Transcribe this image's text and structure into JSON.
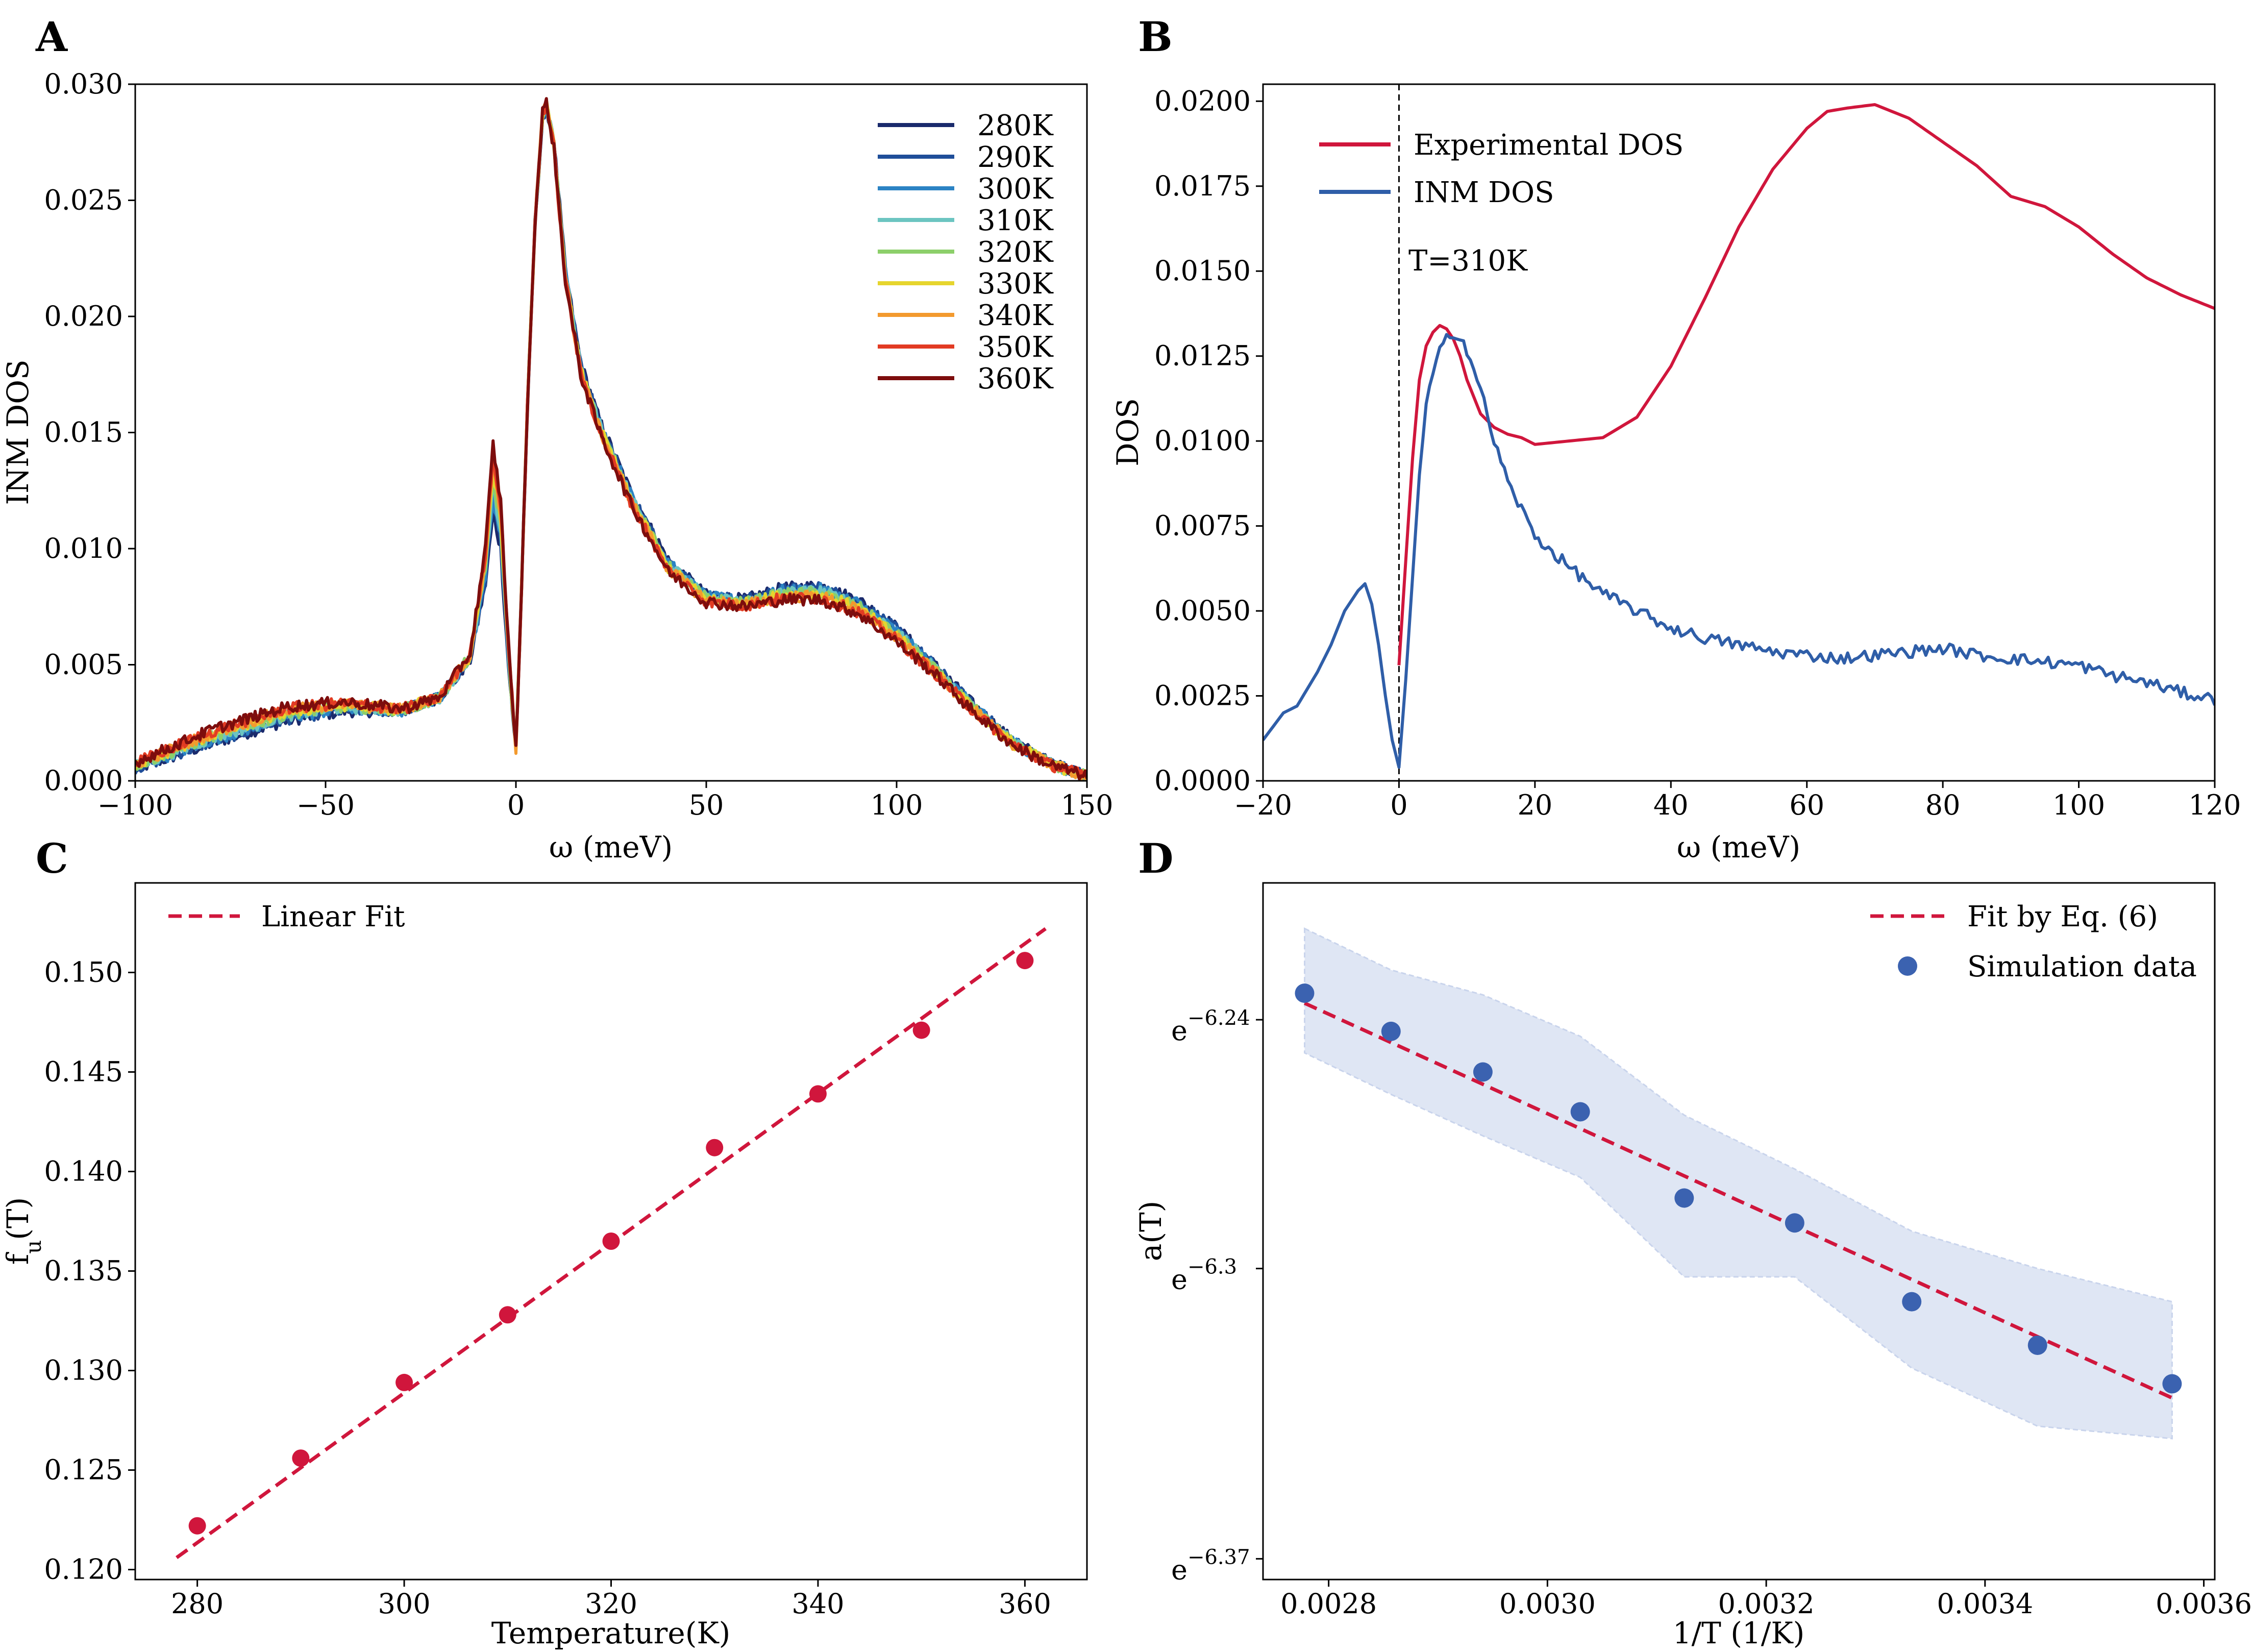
{
  "chart_data": [
    {
      "panel": "A",
      "type": "line",
      "xlabel": "ω (meV)",
      "ylabel": "INM DOS",
      "xlim": [
        -100,
        150
      ],
      "ylim": [
        0,
        0.03
      ],
      "xticks": [
        "−100",
        "−50",
        "0",
        "50",
        "100",
        "150"
      ],
      "yticks": [
        "0.000",
        "0.005",
        "0.010",
        "0.015",
        "0.020",
        "0.025",
        "0.030"
      ],
      "legend_position": "upper-right",
      "series": [
        {
          "name": "280K",
          "color": "#1a2a6c"
        },
        {
          "name": "290K",
          "color": "#1f4e99"
        },
        {
          "name": "300K",
          "color": "#2b83c4"
        },
        {
          "name": "310K",
          "color": "#6cc5c1"
        },
        {
          "name": "320K",
          "color": "#8ccf6a"
        },
        {
          "name": "330K",
          "color": "#e6d52e"
        },
        {
          "name": "340K",
          "color": "#f39a2e"
        },
        {
          "name": "350K",
          "color": "#e23b23"
        },
        {
          "name": "360K",
          "color": "#7d0d0d"
        }
      ],
      "shape_x": [
        -100,
        -80,
        -60,
        -45,
        -30,
        -20,
        -12,
        -8,
        -6,
        -4,
        -2,
        0,
        1,
        3,
        5,
        7,
        8,
        10,
        13,
        17,
        22,
        30,
        40,
        50,
        60,
        70,
        80,
        90,
        100,
        110,
        120,
        130,
        140,
        150
      ],
      "shape_y_280K": [
        0.0005,
        0.0016,
        0.0026,
        0.003,
        0.003,
        0.0036,
        0.0052,
        0.0085,
        0.0115,
        0.01,
        0.005,
        0.0015,
        0.006,
        0.016,
        0.024,
        0.0285,
        0.029,
        0.0275,
        0.022,
        0.018,
        0.0155,
        0.0125,
        0.0095,
        0.008,
        0.0078,
        0.0083,
        0.0084,
        0.0078,
        0.0066,
        0.005,
        0.0033,
        0.0018,
        0.0008,
        0.0002
      ],
      "shape_y_360K": [
        0.0008,
        0.0022,
        0.0032,
        0.0034,
        0.0031,
        0.0036,
        0.0055,
        0.01,
        0.0145,
        0.012,
        0.006,
        0.0013,
        0.006,
        0.016,
        0.024,
        0.0288,
        0.0292,
        0.0272,
        0.0215,
        0.0175,
        0.015,
        0.012,
        0.009,
        0.0077,
        0.0075,
        0.0078,
        0.0078,
        0.0072,
        0.006,
        0.0046,
        0.003,
        0.0016,
        0.0007,
        0.0002
      ]
    },
    {
      "panel": "B",
      "type": "line",
      "xlabel": "ω (meV)",
      "ylabel": "DOS",
      "xlim": [
        -20,
        120
      ],
      "ylim": [
        0,
        0.0205
      ],
      "xticks": [
        "−20",
        "0",
        "20",
        "40",
        "60",
        "80",
        "100",
        "120"
      ],
      "yticks": [
        "0.0000",
        "0.0025",
        "0.0050",
        "0.0075",
        "0.0100",
        "0.0125",
        "0.0150",
        "0.0175",
        "0.0200"
      ],
      "annotation": "T=310K",
      "vline_x": 0,
      "series": [
        {
          "name": "Experimental DOS",
          "color": "#d0163c",
          "x": [
            0,
            1,
            2,
            3,
            4,
            5,
            6,
            7,
            8,
            9,
            10,
            12,
            14,
            16,
            18,
            20,
            25,
            30,
            35,
            40,
            45,
            50,
            55,
            60,
            63,
            66,
            70,
            75,
            80,
            85,
            90,
            95,
            100,
            105,
            110,
            115,
            120
          ],
          "y": [
            0.0034,
            0.0065,
            0.0095,
            0.0118,
            0.0128,
            0.0132,
            0.0134,
            0.0133,
            0.013,
            0.0125,
            0.0118,
            0.0108,
            0.0104,
            0.0102,
            0.0101,
            0.0099,
            0.01,
            0.0101,
            0.0107,
            0.0122,
            0.0142,
            0.0163,
            0.018,
            0.0192,
            0.0197,
            0.0198,
            0.0199,
            0.0195,
            0.0188,
            0.0181,
            0.0172,
            0.0169,
            0.0163,
            0.0155,
            0.0148,
            0.0143,
            0.0139
          ]
        },
        {
          "name": "INM DOS",
          "color": "#2f5ea8",
          "x": [
            -20,
            -17,
            -15,
            -12,
            -10,
            -8,
            -6,
            -5,
            -4,
            -3,
            -2,
            -1,
            0,
            1,
            2,
            3,
            4,
            5,
            6,
            7,
            8,
            9,
            10,
            12,
            14,
            16,
            18,
            20,
            25,
            30,
            35,
            40,
            45,
            50,
            55,
            60,
            65,
            70,
            75,
            80,
            85,
            90,
            95,
            100,
            105,
            110,
            115,
            120
          ],
          "y": [
            0.0012,
            0.002,
            0.0022,
            0.0032,
            0.004,
            0.005,
            0.0056,
            0.0058,
            0.0052,
            0.004,
            0.0025,
            0.0012,
            0.0004,
            0.003,
            0.006,
            0.009,
            0.011,
            0.012,
            0.0126,
            0.013,
            0.0132,
            0.0131,
            0.0127,
            0.0115,
            0.01,
            0.0088,
            0.008,
            0.0072,
            0.0063,
            0.0055,
            0.005,
            0.0045,
            0.0042,
            0.004,
            0.0038,
            0.0037,
            0.0036,
            0.0037,
            0.0038,
            0.0039,
            0.0037,
            0.0036,
            0.0035,
            0.0034,
            0.0031,
            0.0029,
            0.0026,
            0.0024
          ]
        }
      ]
    },
    {
      "panel": "C",
      "type": "scatter",
      "xlabel": "Temperature(K)",
      "ylabel": "f_u(T)",
      "ylabel_main": "f",
      "ylabel_sub": "u",
      "ylabel_tail": "(T)",
      "xlim": [
        274,
        366
      ],
      "ylim": [
        0.1195,
        0.1545
      ],
      "xticks": [
        "280",
        "300",
        "320",
        "340",
        "360"
      ],
      "yticks": [
        "0.120",
        "0.125",
        "0.130",
        "0.135",
        "0.140",
        "0.145",
        "0.150"
      ],
      "point_color": "#d0163c",
      "x": [
        280,
        290,
        300,
        310,
        320,
        330,
        340,
        350,
        360
      ],
      "y": [
        0.1222,
        0.1256,
        0.1294,
        0.1328,
        0.1365,
        0.1412,
        0.1439,
        0.1471,
        0.1506
      ],
      "fit": {
        "name": "Linear Fit",
        "x": [
          278,
          362
        ],
        "y": [
          0.1206,
          0.1522
        ],
        "color": "#d0163c"
      }
    },
    {
      "panel": "D",
      "type": "scatter",
      "xlabel": "1/T (1/K)",
      "ylabel": "a(T)",
      "xlim": [
        0.00274,
        0.00361
      ],
      "ylim_ln": [
        -6.375,
        -6.207
      ],
      "xticks": [
        "0.0028",
        "0.0030",
        "0.0032",
        "0.0034",
        "0.0036"
      ],
      "yticks_ln": [
        -6.24,
        -6.3,
        -6.37
      ],
      "ytick_base": "e",
      "ytick_exponents": [
        "−6.24",
        "−6.3",
        "−6.37"
      ],
      "point_color": "#3b62b0",
      "band_color": "#dfe6f4",
      "x": [
        0.002778,
        0.002857,
        0.002941,
        0.00303,
        0.003125,
        0.003226,
        0.003333,
        0.003448,
        0.003571
      ],
      "ln_y": [
        -6.2336,
        -6.2428,
        -6.2526,
        -6.2622,
        -6.283,
        -6.289,
        -6.308,
        -6.3185,
        -6.3278
      ],
      "band_upper_ln": [
        -6.218,
        -6.228,
        -6.234,
        -6.244,
        -6.263,
        -6.276,
        -6.291,
        -6.3,
        -6.308
      ],
      "band_lower_ln": [
        -6.248,
        -6.258,
        -6.268,
        -6.278,
        -6.302,
        -6.302,
        -6.324,
        -6.338,
        -6.341
      ],
      "fit": {
        "name": "Fit by Eq. (6)",
        "x": [
          0.002778,
          0.003571
        ],
        "ln_y": [
          -6.236,
          -6.3312
        ],
        "color": "#d0163c"
      },
      "legend_entries": [
        "Fit by Eq. (6)",
        "Simulation data"
      ]
    }
  ]
}
